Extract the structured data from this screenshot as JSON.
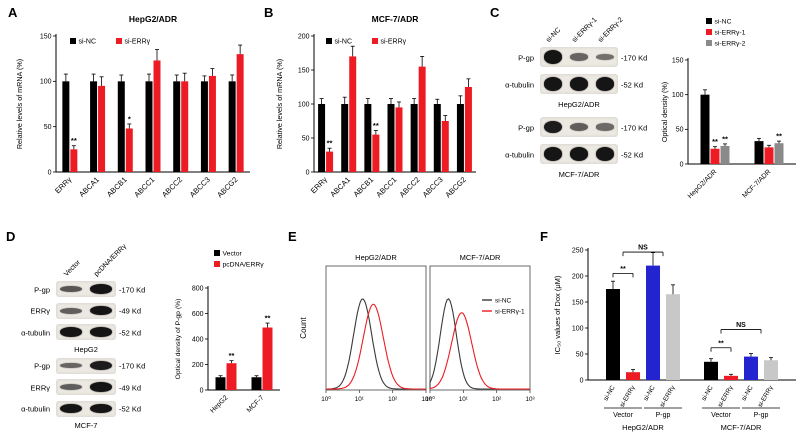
{
  "figure": {
    "panel_labels": {
      "A": "A",
      "B": "B",
      "C": "C",
      "D": "D",
      "E": "E",
      "F": "F"
    }
  },
  "chart_data": [
    {
      "id": "A",
      "type": "bar",
      "title": "HepG2/ADR",
      "ylabel": "Relative levels of mRNA (%)",
      "ylim": [
        0,
        150
      ],
      "yticks": [
        0,
        50,
        100,
        150
      ],
      "categories": [
        "ERRγ",
        "ABCA1",
        "ABCB1",
        "ABCC1",
        "ABCC2",
        "ABCC3",
        "ABCG2"
      ],
      "series": [
        {
          "name": "si-NC",
          "color": "#000000",
          "values": [
            100,
            100,
            100,
            100,
            100,
            100,
            100
          ],
          "errors": [
            8,
            8,
            7,
            8,
            7,
            6,
            7
          ]
        },
        {
          "name": "si-ERRγ",
          "color": "#ed1c24",
          "values": [
            25,
            95,
            48,
            123,
            100,
            106,
            130
          ],
          "errors": [
            4,
            10,
            5,
            12,
            9,
            8,
            10
          ]
        }
      ],
      "sig": [
        {
          "cat": 0,
          "series": 1,
          "text": "**"
        },
        {
          "cat": 2,
          "series": 1,
          "text": "*"
        }
      ],
      "legend_position": "top-left-horizontal",
      "grid": false
    },
    {
      "id": "B",
      "type": "bar",
      "title": "MCF-7/ADR",
      "ylabel": "Relative levels of mRNA (%)",
      "ylim": [
        0,
        200
      ],
      "yticks": [
        0,
        50,
        100,
        150,
        200
      ],
      "categories": [
        "ERRγ",
        "ABCA1",
        "ABCB1",
        "ABCC1",
        "ABCC2",
        "ABCC3",
        "ABCG2"
      ],
      "series": [
        {
          "name": "si-NC",
          "color": "#000000",
          "values": [
            100,
            100,
            100,
            100,
            100,
            100,
            100
          ],
          "errors": [
            8,
            10,
            8,
            8,
            8,
            7,
            12
          ]
        },
        {
          "name": "si-ERRγ",
          "color": "#ed1c24",
          "values": [
            30,
            170,
            55,
            95,
            155,
            75,
            125
          ],
          "errors": [
            5,
            15,
            6,
            8,
            15,
            8,
            12
          ]
        }
      ],
      "sig": [
        {
          "cat": 0,
          "series": 1,
          "text": "**"
        },
        {
          "cat": 2,
          "series": 1,
          "text": "**"
        }
      ],
      "legend_position": "top-left-horizontal",
      "grid": false
    },
    {
      "id": "C",
      "type": "bar",
      "title": "",
      "ylabel": "Optical density (%)",
      "ylim": [
        0,
        150
      ],
      "yticks": [
        0,
        50,
        100,
        150
      ],
      "categories": [
        "HepG2/ADR",
        "MCF-7/ADR"
      ],
      "series": [
        {
          "name": "si-NC",
          "color": "#000000",
          "values": [
            100,
            33
          ],
          "errors": [
            7,
            4
          ]
        },
        {
          "name": "si-ERRγ-1",
          "color": "#ed1c24",
          "values": [
            22,
            24
          ],
          "errors": [
            3,
            3
          ]
        },
        {
          "name": "si-ERRγ-2",
          "color": "#8a8a8a",
          "values": [
            26,
            30
          ],
          "errors": [
            3,
            3
          ]
        }
      ],
      "sig": [
        {
          "cat": 0,
          "series": 1,
          "text": "**"
        },
        {
          "cat": 0,
          "series": 2,
          "text": "**"
        },
        {
          "cat": 1,
          "series": 2,
          "text": "**"
        }
      ],
      "legend_position": "top-vertical",
      "grid": false
    },
    {
      "id": "D",
      "type": "bar",
      "title": "",
      "ylabel": "Optical density of P-gp (%)",
      "ylim": [
        0,
        800
      ],
      "yticks": [
        0,
        200,
        400,
        600,
        800
      ],
      "categories": [
        "HepG2",
        "MCF-7"
      ],
      "series": [
        {
          "name": "Vector",
          "color": "#000000",
          "values": [
            100,
            100
          ],
          "errors": [
            12,
            12
          ]
        },
        {
          "name": "pcDNA/ERRγ",
          "color": "#ed1c24",
          "values": [
            210,
            490
          ],
          "errors": [
            20,
            35
          ]
        }
      ],
      "sig": [
        {
          "cat": 0,
          "series": 1,
          "text": "**"
        },
        {
          "cat": 1,
          "series": 1,
          "text": "**"
        }
      ],
      "legend_position": "top-vertical",
      "grid": false
    },
    {
      "id": "E",
      "type": "histogram",
      "ylabel": "Count",
      "xticks": [
        "10⁰",
        "10¹",
        "10²",
        "10³"
      ],
      "legend": [
        "si-NC",
        "si-ERRγ-1"
      ],
      "panels": [
        {
          "title": "HepG2/ADR",
          "series": [
            {
              "name": "si-NC",
              "color": "#3a3a3a",
              "peak_log10": 1.1,
              "sigma_log10": 0.27,
              "height": 0.85
            },
            {
              "name": "si-ERRγ-1",
              "color": "#ed1c24",
              "peak_log10": 1.42,
              "sigma_log10": 0.3,
              "height": 0.8
            }
          ]
        },
        {
          "title": "MCF-7/ADR",
          "series": [
            {
              "name": "si-NC",
              "color": "#3a3a3a",
              "peak_log10": 0.55,
              "sigma_log10": 0.24,
              "height": 0.85
            },
            {
              "name": "si-ERRγ-1",
              "color": "#ed1c24",
              "peak_log10": 0.95,
              "sigma_log10": 0.3,
              "height": 0.72
            }
          ]
        }
      ]
    },
    {
      "id": "F",
      "type": "bar",
      "ylabel": "IC₅₀ values of Dox (μM)",
      "ylim": [
        0,
        250
      ],
      "yticks": [
        0,
        50,
        100,
        150,
        200,
        250
      ],
      "bars": [
        {
          "label": "si-NC",
          "value": 175,
          "error": 15,
          "color": "#000000"
        },
        {
          "label": "si-ERRγ",
          "value": 15,
          "error": 5,
          "color": "#ed1c24"
        },
        {
          "label": "si-NC",
          "value": 220,
          "error": 25,
          "color": "#2323cf"
        },
        {
          "label": "si-ERRγ",
          "value": 165,
          "error": 18,
          "color": "#c8c8c8"
        },
        {
          "label": "si-NC",
          "value": 35,
          "error": 6,
          "color": "#000000"
        },
        {
          "label": "si-ERRγ",
          "value": 8,
          "error": 3,
          "color": "#ed1c24"
        },
        {
          "label": "si-NC",
          "value": 45,
          "error": 6,
          "color": "#2323cf"
        },
        {
          "label": "si-ERRγ",
          "value": 38,
          "error": 5,
          "color": "#c8c8c8"
        }
      ],
      "group_labels": [
        "Vector",
        "P-gp",
        "Vector",
        "P-gp"
      ],
      "cell_labels": [
        "HepG2/ADR",
        "MCF-7/ADR"
      ],
      "comparisons": [
        {
          "text": "**",
          "from": 0,
          "to": 1,
          "y": 205
        },
        {
          "text": "NS",
          "from": 0.5,
          "to": 2.5,
          "y": 246
        },
        {
          "text": "**",
          "from": 4,
          "to": 5,
          "y": 62
        },
        {
          "text": "NS",
          "from": 4.5,
          "to": 6.5,
          "y": 97
        }
      ],
      "grid": false
    }
  ],
  "blots": {
    "c": {
      "lane_labels": [
        "si-NC",
        "si-ERRγ-1",
        "si-ERRγ-2"
      ],
      "groups": [
        {
          "cell": "HepG2/ADR",
          "rows": [
            {
              "protein": "P-gp",
              "kd": "-170 Kd",
              "bands": [
                1.0,
                0.45,
                0.38
              ]
            },
            {
              "protein": "α-tubulin",
              "kd": "-52 Kd",
              "bands": [
                1.0,
                1.0,
                1.0
              ]
            }
          ]
        },
        {
          "cell": "MCF-7/ADR",
          "rows": [
            {
              "protein": "P-gp",
              "kd": "-170 Kd",
              "bands": [
                0.95,
                0.5,
                0.42
              ]
            },
            {
              "protein": "α-tubulin",
              "kd": "-52 Kd",
              "bands": [
                1.0,
                1.0,
                1.0
              ]
            }
          ]
        }
      ]
    },
    "d": {
      "lane_labels": [
        "Vector",
        "pcDNA/ERRγ"
      ],
      "groups": [
        {
          "cell": "HepG2",
          "rows": [
            {
              "protein": "P-gp",
              "kd": "-170 Kd",
              "bands": [
                0.55,
                1.0
              ]
            },
            {
              "protein": "ERRγ",
              "kd": "-49 Kd",
              "bands": [
                0.5,
                1.0
              ]
            },
            {
              "protein": "α-tubulin",
              "kd": "-52 Kd",
              "bands": [
                1.0,
                1.0
              ]
            }
          ]
        },
        {
          "cell": "MCF-7",
          "rows": [
            {
              "protein": "P-gp",
              "kd": "-170 Kd",
              "bands": [
                0.45,
                0.95
              ]
            },
            {
              "protein": "ERRγ",
              "kd": "-49 Kd",
              "bands": [
                0.5,
                1.0
              ]
            },
            {
              "protein": "α-tubulin",
              "kd": "-52 Kd",
              "bands": [
                1.0,
                1.0
              ]
            }
          ]
        }
      ]
    }
  }
}
